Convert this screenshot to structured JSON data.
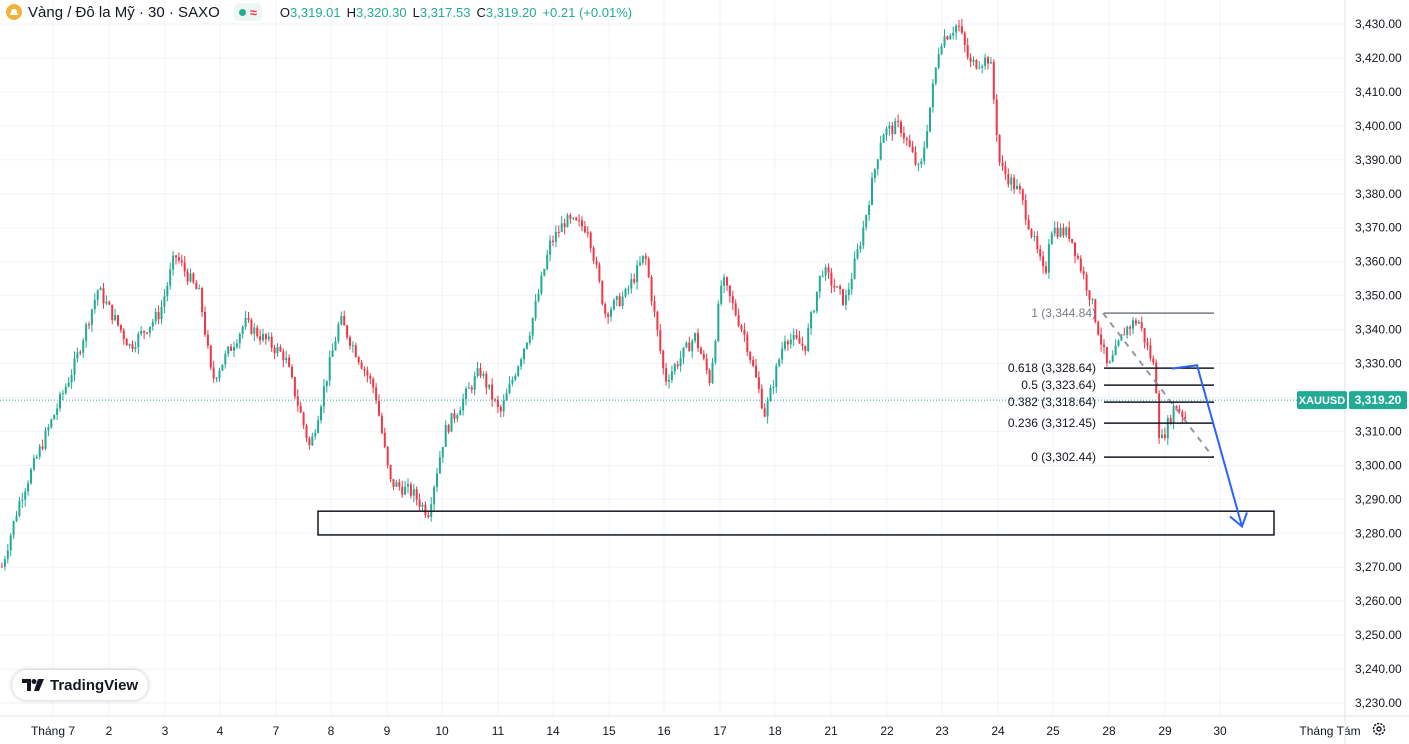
{
  "header": {
    "symbol_title": "Vàng / Đô la Mỹ · 30 · SAXO",
    "approx_icon": "≈",
    "ohlc": {
      "o_label": "O",
      "o_value": "3,319.01",
      "h_label": "H",
      "h_value": "3,320.30",
      "l_label": "L",
      "l_value": "3,317.53",
      "c_label": "C",
      "c_value": "3,319.20",
      "change": "+0.21 (+0.01%)"
    }
  },
  "branding": {
    "logo_text": "TradingView",
    "logo_icon": "tradingview-logo"
  },
  "settings_icon": "gear-icon",
  "colors": {
    "up": "#22ab94",
    "down": "#f23645",
    "draw": "#2962ff",
    "grid": "#f0f3fa"
  },
  "chart_data": {
    "type": "candlestick",
    "symbol": "XAUUSD",
    "last_price": "3,319.20",
    "y_ticks": [
      "3,230.00",
      "3,240.00",
      "3,250.00",
      "3,260.00",
      "3,270.00",
      "3,280.00",
      "3,290.00",
      "3,300.00",
      "3,310.00",
      "3,320.00",
      "3,330.00",
      "3,340.00",
      "3,350.00",
      "3,360.00",
      "3,370.00",
      "3,380.00",
      "3,390.00",
      "3,400.00",
      "3,410.00",
      "3,420.00",
      "3,430.00"
    ],
    "ylim": [
      3225,
      3435
    ],
    "x_ticks": [
      "Tháng 7",
      "2",
      "3",
      "4",
      "7",
      "8",
      "9",
      "10",
      "11",
      "14",
      "15",
      "16",
      "17",
      "18",
      "21",
      "22",
      "23",
      "24",
      "25",
      "28",
      "29",
      "30",
      "Tháng Tám"
    ],
    "price_path": [
      {
        "x": 0,
        "y": 3268
      },
      {
        "x": 20,
        "y": 3290
      },
      {
        "x": 50,
        "y": 3312
      },
      {
        "x": 75,
        "y": 3330
      },
      {
        "x": 98,
        "y": 3352
      },
      {
        "x": 130,
        "y": 3335
      },
      {
        "x": 160,
        "y": 3345
      },
      {
        "x": 175,
        "y": 3362
      },
      {
        "x": 200,
        "y": 3350
      },
      {
        "x": 212,
        "y": 3325
      },
      {
        "x": 245,
        "y": 3342
      },
      {
        "x": 285,
        "y": 3332
      },
      {
        "x": 310,
        "y": 3305
      },
      {
        "x": 340,
        "y": 3343
      },
      {
        "x": 375,
        "y": 3322
      },
      {
        "x": 390,
        "y": 3295
      },
      {
        "x": 412,
        "y": 3292
      },
      {
        "x": 428,
        "y": 3286
      },
      {
        "x": 445,
        "y": 3310
      },
      {
        "x": 480,
        "y": 3328
      },
      {
        "x": 500,
        "y": 3315
      },
      {
        "x": 530,
        "y": 3340
      },
      {
        "x": 550,
        "y": 3365
      },
      {
        "x": 565,
        "y": 3372
      },
      {
        "x": 588,
        "y": 3370
      },
      {
        "x": 605,
        "y": 3345
      },
      {
        "x": 625,
        "y": 3350
      },
      {
        "x": 645,
        "y": 3362
      },
      {
        "x": 665,
        "y": 3325
      },
      {
        "x": 695,
        "y": 3338
      },
      {
        "x": 710,
        "y": 3325
      },
      {
        "x": 722,
        "y": 3355
      },
      {
        "x": 745,
        "y": 3338
      },
      {
        "x": 765,
        "y": 3315
      },
      {
        "x": 785,
        "y": 3338
      },
      {
        "x": 805,
        "y": 3335
      },
      {
        "x": 822,
        "y": 3358
      },
      {
        "x": 845,
        "y": 3348
      },
      {
        "x": 862,
        "y": 3368
      },
      {
        "x": 882,
        "y": 3398
      },
      {
        "x": 900,
        "y": 3400
      },
      {
        "x": 920,
        "y": 3386
      },
      {
        "x": 940,
        "y": 3425
      },
      {
        "x": 958,
        "y": 3430
      },
      {
        "x": 970,
        "y": 3418
      },
      {
        "x": 990,
        "y": 3420
      },
      {
        "x": 1000,
        "y": 3388
      },
      {
        "x": 1020,
        "y": 3380
      },
      {
        "x": 1045,
        "y": 3355
      },
      {
        "x": 1050,
        "y": 3370
      },
      {
        "x": 1070,
        "y": 3368
      },
      {
        "x": 1090,
        "y": 3350
      },
      {
        "x": 1108,
        "y": 3328
      },
      {
        "x": 1125,
        "y": 3340
      },
      {
        "x": 1138,
        "y": 3343
      },
      {
        "x": 1155,
        "y": 3328
      },
      {
        "x": 1160,
        "y": 3306
      },
      {
        "x": 1175,
        "y": 3318
      },
      {
        "x": 1188,
        "y": 3313
      }
    ],
    "fibonacci": [
      {
        "level": "1",
        "label": "1 (3,344.84)",
        "price": 3344.84,
        "color": "#787b86"
      },
      {
        "level": "0.618",
        "label": "0.618 (3,328.64)",
        "price": 3328.64,
        "color": "#131722"
      },
      {
        "level": "0.5",
        "label": "0.5 (3,323.64)",
        "price": 3323.64,
        "color": "#131722"
      },
      {
        "level": "0.382",
        "label": "0.382 (3,318.64)",
        "price": 3318.64,
        "color": "#131722"
      },
      {
        "level": "0.236",
        "label": "0.236 (3,312.45)",
        "price": 3312.45,
        "color": "#131722"
      },
      {
        "level": "0",
        "label": "0 (3,302.44)",
        "price": 3302.44,
        "color": "#131722"
      }
    ],
    "support_zone": {
      "top": 3286.5,
      "bottom": 3279.5
    },
    "projection_arrow": [
      3328.5,
      3329.5,
      3282
    ]
  }
}
